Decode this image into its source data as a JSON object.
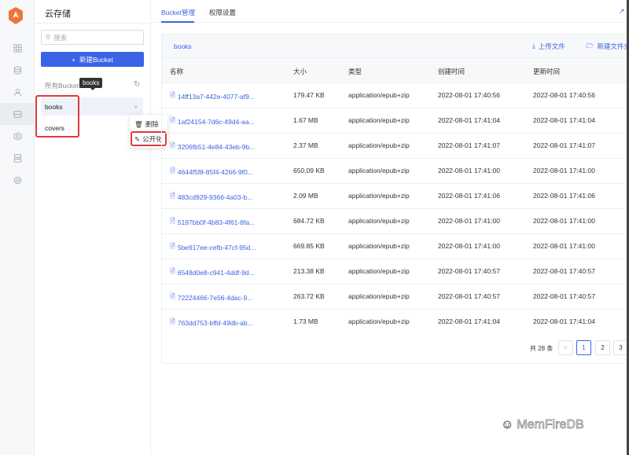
{
  "app": {
    "title": "云存储",
    "brand_color": "#3b63e6",
    "alert_color": "#e0393e"
  },
  "rail": {
    "icons": [
      "grid-icon",
      "database-icon",
      "user-icon",
      "storage-icon",
      "function-icon",
      "server-icon",
      "settings-icon"
    ],
    "active": 3
  },
  "panel": {
    "search_placeholder": "搜索",
    "new_button": "新建Bucket",
    "all_label": "所有Buckets",
    "tooltip": "books",
    "buckets": [
      {
        "name": "books",
        "selected": true
      },
      {
        "name": "covers",
        "selected": false
      }
    ],
    "context_menu": [
      {
        "label": "删除",
        "icon": "trash-icon"
      },
      {
        "label": "公开化",
        "icon": "edit-icon"
      }
    ]
  },
  "tabs": [
    {
      "label": "Bucket管理",
      "active": true
    },
    {
      "label": "权限设置",
      "active": false
    }
  ],
  "card": {
    "breadcrumb": "books",
    "upload": "上传文件",
    "new_folder": "新建文件夹"
  },
  "table": {
    "columns": [
      "名称",
      "大小",
      "类型",
      "创建时间",
      "更新时间"
    ],
    "rows": [
      [
        "14ff13a7-442e-4077-af9...",
        "179.47 KB",
        "application/epub+zip",
        "2022-08-01 17:40:56",
        "2022-08-01 17:40:56"
      ],
      [
        "1af24154-7d6c-49d4-aa...",
        "1.67 MB",
        "application/epub+zip",
        "2022-08-01 17:41:04",
        "2022-08-01 17:41:04"
      ],
      [
        "3206fb51-4e84-43eb-9b...",
        "2.37 MB",
        "application/epub+zip",
        "2022-08-01 17:41:07",
        "2022-08-01 17:41:07"
      ],
      [
        "4644f5f8-85f4-4266-9f0...",
        "650.09 KB",
        "application/epub+zip",
        "2022-08-01 17:41:00",
        "2022-08-01 17:41:00"
      ],
      [
        "483cd929-9366-4a03-b...",
        "2.09 MB",
        "application/epub+zip",
        "2022-08-01 17:41:06",
        "2022-08-01 17:41:06"
      ],
      [
        "5197bb0f-4b83-4f61-8fa...",
        "684.72 KB",
        "application/epub+zip",
        "2022-08-01 17:41:00",
        "2022-08-01 17:41:00"
      ],
      [
        "5be917ee-cefb-47cf-95d...",
        "669.85 KB",
        "application/epub+zip",
        "2022-08-01 17:41:00",
        "2022-08-01 17:41:00"
      ],
      [
        "6548d0e8-c941-4ddf-9d...",
        "213.38 KB",
        "application/epub+zip",
        "2022-08-01 17:40:57",
        "2022-08-01 17:40:57"
      ],
      [
        "72224466-7e56-4dac-9...",
        "263.72 KB",
        "application/epub+zip",
        "2022-08-01 17:40:57",
        "2022-08-01 17:40:57"
      ],
      [
        "763dd753-bffd-49db-ab...",
        "1.73 MB",
        "application/epub+zip",
        "2022-08-01 17:41:04",
        "2022-08-01 17:41:04"
      ]
    ]
  },
  "pagination": {
    "total": "共 28 条",
    "prev": "<",
    "pages": [
      "1",
      "2",
      "3"
    ],
    "current": "1"
  },
  "watermark": "MemFireDB"
}
